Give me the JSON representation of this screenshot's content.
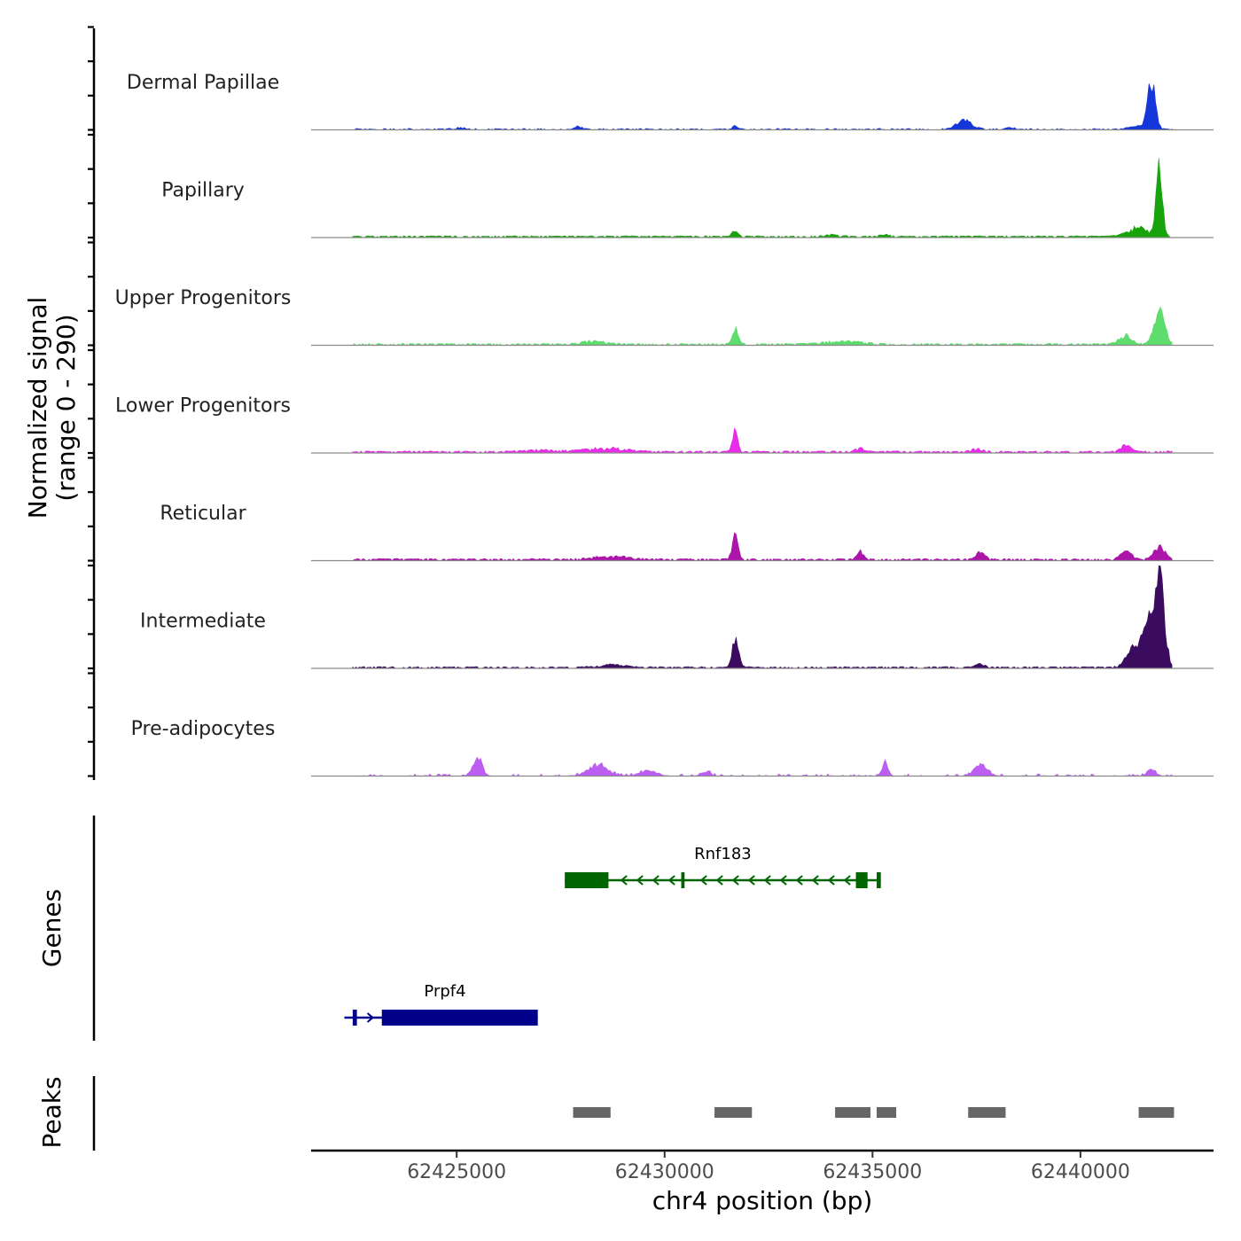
{
  "chart_data": {
    "type": "area",
    "title": "",
    "xlabel": "chr4 position (bp)",
    "ylabel": "Normalized signal",
    "ylabel_range": "(range 0 - 290)",
    "xlim": [
      62421500,
      62443200
    ],
    "ylim": [
      0,
      290
    ],
    "x_ticks": [
      62425000,
      62430000,
      62435000,
      62440000
    ],
    "x_tick_labels": [
      "62425000",
      "62430000",
      "62435000",
      "62440000"
    ],
    "signal_start": 62422500,
    "signal_end": 62442200,
    "tracks": [
      {
        "name": "Dermal Papillae",
        "color": "#1536d8",
        "baseline": 1.5,
        "noise": 2.5,
        "density": 0.55,
        "peaks": [
          [
            62425100,
            4,
            200
          ],
          [
            62427900,
            7,
            160
          ],
          [
            62431700,
            9,
            90
          ],
          [
            62437200,
            23,
            260
          ],
          [
            62438300,
            6,
            160
          ],
          [
            62441700,
            130,
            140
          ],
          [
            62441300,
            8,
            250
          ]
        ]
      },
      {
        "name": "Papillary",
        "color": "#18a30c",
        "baseline": 3,
        "noise": 2,
        "density": 0.7,
        "peaks": [
          [
            62431700,
            18,
            90
          ],
          [
            62434000,
            5,
            250
          ],
          [
            62435300,
            6,
            150
          ],
          [
            62441900,
            200,
            100
          ],
          [
            62441400,
            25,
            350
          ]
        ]
      },
      {
        "name": "Upper Progenitors",
        "color": "#5edc6e",
        "baseline": 3,
        "noise": 2.5,
        "density": 0.6,
        "peaks": [
          [
            62431700,
            45,
            100
          ],
          [
            62428300,
            8,
            400
          ],
          [
            62434300,
            9,
            600
          ],
          [
            62441900,
            85,
            180
          ],
          [
            62441100,
            25,
            220
          ]
        ]
      },
      {
        "name": "Lower Progenitors",
        "color": "#e72de8",
        "baseline": 3,
        "noise": 3,
        "density": 0.75,
        "peaks": [
          [
            62431700,
            55,
            90
          ],
          [
            62428600,
            10,
            700
          ],
          [
            62427000,
            5,
            500
          ],
          [
            62434700,
            10,
            150
          ],
          [
            62437500,
            8,
            180
          ],
          [
            62441100,
            18,
            170
          ]
        ]
      },
      {
        "name": "Reticular",
        "color": "#ac15aa",
        "baseline": 3,
        "noise": 3,
        "density": 0.7,
        "peaks": [
          [
            62431700,
            65,
            100
          ],
          [
            62428800,
            9,
            600
          ],
          [
            62434700,
            22,
            120
          ],
          [
            62437600,
            22,
            140
          ],
          [
            62441100,
            24,
            180
          ],
          [
            62441900,
            35,
            180
          ]
        ]
      },
      {
        "name": "Intermediate",
        "color": "#3a0b5e",
        "baseline": 2.5,
        "noise": 2.5,
        "density": 0.7,
        "peaks": [
          [
            62431700,
            75,
            110
          ],
          [
            62428700,
            8,
            400
          ],
          [
            62437600,
            12,
            140
          ],
          [
            62441900,
            270,
            160
          ],
          [
            62441300,
            60,
            250
          ],
          [
            62441600,
            110,
            160
          ]
        ]
      },
      {
        "name": "Pre-adipocytes",
        "color": "#bd5ef2",
        "baseline": 0,
        "noise": 6,
        "density": 0.35,
        "peaks": [
          [
            62425500,
            55,
            150
          ],
          [
            62428400,
            28,
            350
          ],
          [
            62429600,
            14,
            300
          ],
          [
            62431000,
            12,
            150
          ],
          [
            62435300,
            42,
            100
          ],
          [
            62437600,
            32,
            220
          ],
          [
            62441700,
            20,
            130
          ]
        ]
      }
    ],
    "genes_label": "Genes",
    "genes": [
      {
        "name": "Rnf183",
        "strand": "-",
        "start": 62427600,
        "end": 62435200,
        "color": "#006400",
        "exons": [
          [
            62427600,
            62428650
          ],
          [
            62430400,
            62430480
          ],
          [
            62434600,
            62434880
          ],
          [
            62435100,
            62435200
          ]
        ],
        "row": 0
      },
      {
        "name": "Prpf4",
        "strand": "+",
        "start": 62422300,
        "end": 62426950,
        "color": "#00008b",
        "exons": [
          [
            62422500,
            62422600
          ],
          [
            62423200,
            62426950
          ]
        ],
        "row": 1
      }
    ],
    "peaks_label": "Peaks",
    "peak_regions": [
      [
        62427800,
        62428700
      ],
      [
        62431200,
        62432100
      ],
      [
        62434100,
        62434950
      ],
      [
        62435100,
        62435570
      ],
      [
        62437300,
        62438200
      ],
      [
        62441400,
        62442250
      ]
    ]
  }
}
